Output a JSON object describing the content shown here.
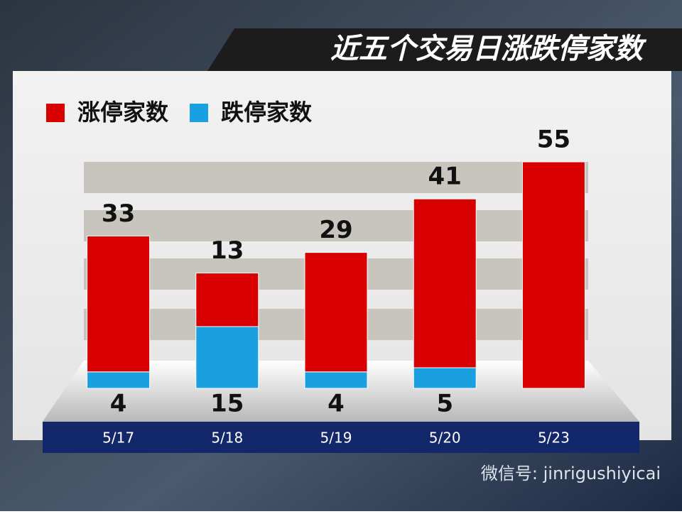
{
  "chart_data": {
    "type": "stacked-bar",
    "title": "近五个交易日涨跌停家数",
    "categories": [
      "5/17",
      "5/18",
      "5/19",
      "5/20",
      "5/23"
    ],
    "series": [
      {
        "name": "涨停家数",
        "color": "#d80000",
        "values": [
          33,
          13,
          29,
          41,
          55
        ]
      },
      {
        "name": "跌停家数",
        "color": "#1a9fe0",
        "values": [
          4,
          15,
          4,
          5,
          null
        ]
      }
    ],
    "watermark": "微信号: jinrigushiyicai"
  }
}
